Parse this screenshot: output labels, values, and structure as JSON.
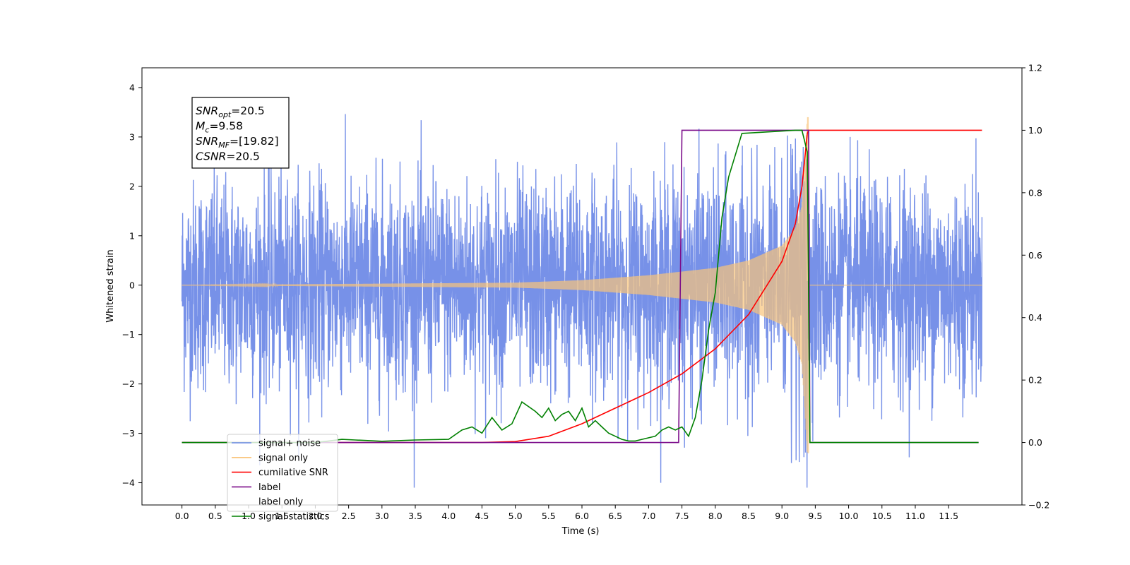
{
  "chart_data": {
    "type": "line",
    "xlabel": "Time (s)",
    "ylabel": "Whitened strain",
    "xlim": [
      -0.6,
      12.6
    ],
    "ylim": [
      -4.45,
      4.4
    ],
    "ylim_right": [
      -0.2,
      1.2
    ],
    "x_ticks": [
      "0.0",
      "0.5",
      "1.0",
      "1.5",
      "2.0",
      "2.5",
      "3.0",
      "3.5",
      "4.0",
      "4.5",
      "5.0",
      "5.5",
      "6.0",
      "6.5",
      "7.0",
      "7.5",
      "8.0",
      "8.5",
      "9.0",
      "9.5",
      "10.0",
      "10.5",
      "11.0",
      "11.5"
    ],
    "y_ticks": [
      "4",
      "3",
      "2",
      "1",
      "0",
      "−1",
      "−2",
      "−3",
      "−4"
    ],
    "y_right_ticks": [
      "1.2",
      "1.0",
      "0.8",
      "0.6",
      "0.4",
      "0.2",
      "0.0",
      "−0.2"
    ],
    "grid": false,
    "legend_position": "lower-left",
    "annotation": {
      "lines": [
        {
          "name": "SNR",
          "sub": "opt",
          "value": "=20.5"
        },
        {
          "name": "M",
          "sub": "c",
          "value": "=9.58"
        },
        {
          "name": "SNR",
          "sub": "MF",
          "value": "=[19.82]"
        },
        {
          "name": "CSNR",
          "sub": "",
          "value": "=20.5"
        }
      ]
    },
    "series": [
      {
        "name": "signal+ noise",
        "color": "#6b88e6",
        "axis": "left",
        "kind": "noisy",
        "time_range": [
          0.0,
          12.0
        ],
        "noise_std": 1.0,
        "extreme_range": [
          -4.1,
          3.95
        ]
      },
      {
        "name": "signal only",
        "color": "#f9c47a",
        "axis": "left",
        "kind": "chirp",
        "time_range": [
          0.0,
          12.0
        ],
        "merger_time": 9.38,
        "envelope": {
          "t": [
            0,
            5.0,
            6.0,
            7.0,
            8.0,
            8.5,
            9.0,
            9.2,
            9.3,
            9.38
          ],
          "amp": [
            0.0,
            0.05,
            0.1,
            0.2,
            0.35,
            0.5,
            0.8,
            1.15,
            1.6,
            3.4
          ]
        }
      },
      {
        "name": "cumilative SNR",
        "color": "#ff0000",
        "axis": "right",
        "x": [
          0.0,
          4.5,
          5.0,
          5.5,
          6.0,
          6.5,
          7.0,
          7.5,
          8.0,
          8.5,
          9.0,
          9.2,
          9.3,
          9.38,
          9.4,
          12.0
        ],
        "y": [
          0.0,
          0.0,
          0.003,
          0.02,
          0.06,
          0.11,
          0.16,
          0.22,
          0.3,
          0.41,
          0.58,
          0.7,
          0.82,
          0.99,
          1.0,
          1.0
        ]
      },
      {
        "name": "label",
        "color": "#7b0c8a",
        "axis": "right",
        "x": [
          0.0,
          7.45,
          7.5,
          9.4,
          9.42,
          11.95
        ],
        "y": [
          0.0,
          0.0,
          1.0,
          1.0,
          0.0,
          0.0
        ]
      },
      {
        "name": "label only",
        "color": "#ffffff",
        "axis": "right",
        "x": [],
        "y": []
      },
      {
        "name": "signal statistics",
        "color": "#008000",
        "axis": "right",
        "x": [
          0.0,
          2.0,
          2.2,
          2.4,
          2.6,
          3.0,
          3.5,
          4.0,
          4.2,
          4.35,
          4.5,
          4.65,
          4.8,
          4.95,
          5.1,
          5.3,
          5.4,
          5.5,
          5.6,
          5.7,
          5.8,
          5.9,
          6.0,
          6.1,
          6.2,
          6.3,
          6.4,
          6.5,
          6.6,
          6.7,
          6.8,
          6.9,
          7.0,
          7.1,
          7.2,
          7.3,
          7.4,
          7.5,
          7.6,
          7.7,
          7.8,
          7.9,
          8.0,
          8.1,
          8.2,
          8.3,
          8.4,
          9.2,
          9.3,
          9.38,
          9.42,
          11.95
        ],
        "y": [
          0.0,
          0.0,
          0.005,
          0.01,
          0.008,
          0.004,
          0.008,
          0.01,
          0.04,
          0.05,
          0.03,
          0.08,
          0.04,
          0.06,
          0.13,
          0.1,
          0.08,
          0.11,
          0.07,
          0.09,
          0.1,
          0.07,
          0.11,
          0.05,
          0.07,
          0.05,
          0.03,
          0.02,
          0.01,
          0.005,
          0.005,
          0.01,
          0.015,
          0.02,
          0.04,
          0.05,
          0.04,
          0.05,
          0.02,
          0.08,
          0.2,
          0.36,
          0.48,
          0.72,
          0.85,
          0.92,
          0.99,
          1.0,
          1.0,
          0.93,
          0.0,
          0.0
        ]
      }
    ]
  }
}
